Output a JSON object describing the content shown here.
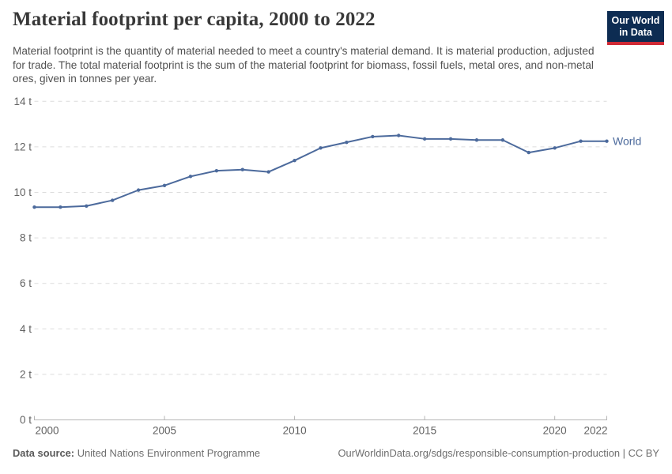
{
  "header": {
    "title": "Material footprint per capita, 2000 to 2022",
    "subtitle": "Material footprint is the quantity of material needed to meet a country's material demand. It is material production, adjusted for trade. The total material footprint is the sum of the material footprint for biomass, fossil fuels, metal ores, and non-metal ores, given in tonnes per year.",
    "logo": {
      "line1": "Our World",
      "line2": "in Data",
      "bg_color": "#0d2c52",
      "accent_color": "#d02a35"
    }
  },
  "chart_data": {
    "type": "line",
    "title": "Material footprint per capita, 2000 to 2022",
    "xlabel": "",
    "ylabel": "",
    "y_tick_suffix": " t",
    "xlim": [
      2000,
      2022
    ],
    "ylim": [
      0,
      14
    ],
    "y_ticks": [
      0,
      2,
      4,
      6,
      8,
      10,
      12,
      14
    ],
    "x_ticks": [
      2000,
      2005,
      2010,
      2015,
      2020,
      2022
    ],
    "grid": "horizontal-dashed",
    "legend_position": "end-of-line-label",
    "colors": {
      "grid": "#dcdcdc",
      "axis": "#b5b5b5",
      "tick_label": "#616161"
    },
    "series": [
      {
        "name": "World",
        "color": "#4c6a9c",
        "x": [
          2000,
          2001,
          2002,
          2003,
          2004,
          2005,
          2006,
          2007,
          2008,
          2009,
          2010,
          2011,
          2012,
          2013,
          2014,
          2015,
          2016,
          2017,
          2018,
          2019,
          2020,
          2021,
          2022
        ],
        "values": [
          9.35,
          9.35,
          9.4,
          9.65,
          10.1,
          10.3,
          10.7,
          10.95,
          11.0,
          10.9,
          11.4,
          11.95,
          12.2,
          12.45,
          12.5,
          12.35,
          12.35,
          12.3,
          12.3,
          11.75,
          11.95,
          12.25,
          12.25
        ]
      }
    ]
  },
  "footer": {
    "data_source_label": "Data source:",
    "data_source": "United Nations Environment Programme",
    "attribution": "OurWorldinData.org/sdgs/responsible-consumption-production | CC BY"
  }
}
